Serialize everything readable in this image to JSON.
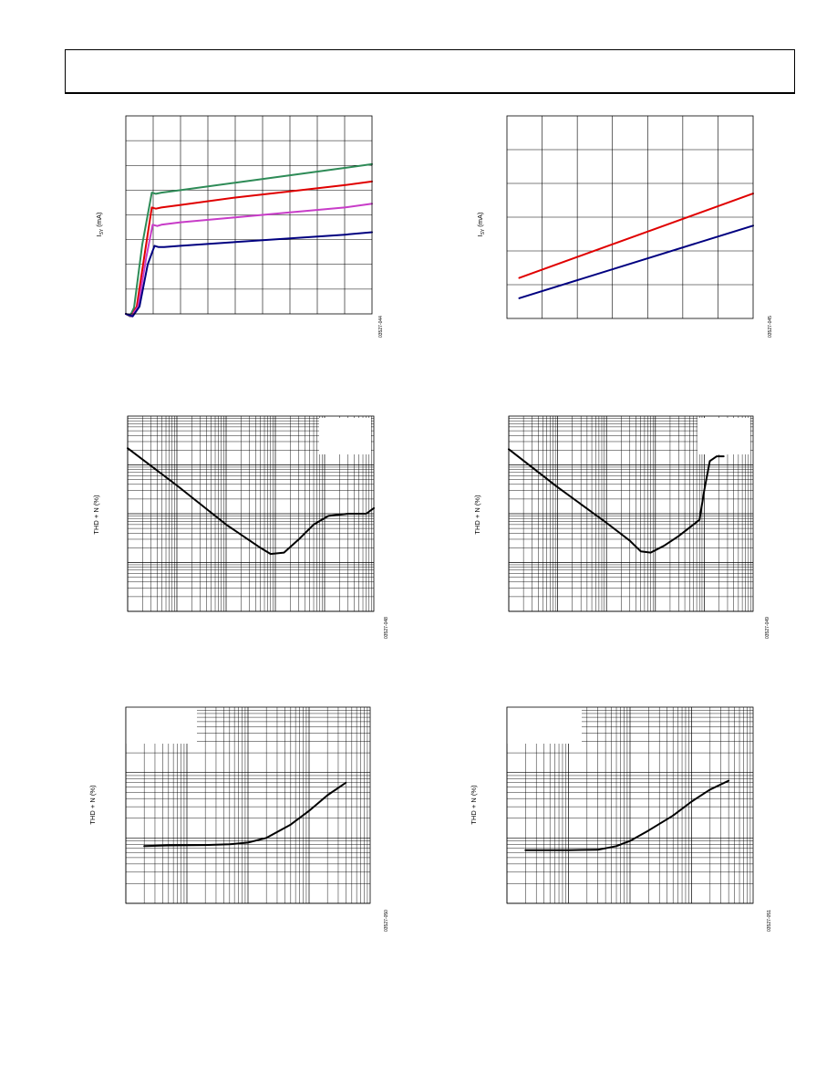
{
  "page": {
    "figure_ids": [
      "03527-044",
      "03527-045",
      "03527-048",
      "03527-049",
      "03527-050",
      "03527-051"
    ]
  },
  "chart_data": [
    {
      "id": "isy-vs-vsy",
      "type": "line",
      "ylabel_main": "I",
      "ylabel_sub": "SY",
      "ylabel_unit": "(mA)",
      "figure_id": "03527-044",
      "log_x": false,
      "log_y": false,
      "xlim": [
        0,
        9
      ],
      "ylim": [
        0,
        8
      ],
      "x_divisions": 9,
      "y_divisions": 8,
      "grid": true,
      "series": [
        {
          "color": "#2e8b57",
          "points": [
            [
              0,
              0
            ],
            [
              0.15,
              -0.1
            ],
            [
              0.3,
              0.25
            ],
            [
              0.6,
              2.8
            ],
            [
              0.95,
              4.9
            ],
            [
              1.1,
              4.85
            ],
            [
              1.3,
              4.9
            ],
            [
              2,
              5
            ],
            [
              4,
              5.3
            ],
            [
              6,
              5.6
            ],
            [
              8,
              5.9
            ],
            [
              9,
              6.05
            ]
          ]
        },
        {
          "color": "#e00000",
          "points": [
            [
              0,
              0
            ],
            [
              0.2,
              -0.1
            ],
            [
              0.4,
              0.3
            ],
            [
              0.7,
              2.5
            ],
            [
              0.95,
              4.3
            ],
            [
              1.1,
              4.25
            ],
            [
              1.3,
              4.3
            ],
            [
              2,
              4.4
            ],
            [
              4,
              4.7
            ],
            [
              6,
              4.95
            ],
            [
              8,
              5.2
            ],
            [
              9,
              5.35
            ]
          ]
        },
        {
          "color": "#c83cc8",
          "points": [
            [
              0,
              0
            ],
            [
              0.2,
              -0.1
            ],
            [
              0.45,
              0.3
            ],
            [
              0.75,
              2.3
            ],
            [
              0.98,
              3.6
            ],
            [
              1.15,
              3.55
            ],
            [
              1.3,
              3.6
            ],
            [
              2,
              3.7
            ],
            [
              4,
              3.9
            ],
            [
              6,
              4.1
            ],
            [
              8,
              4.3
            ],
            [
              9,
              4.45
            ]
          ]
        },
        {
          "color": "#000080",
          "points": [
            [
              0,
              0
            ],
            [
              0.25,
              -0.1
            ],
            [
              0.5,
              0.3
            ],
            [
              0.8,
              2.0
            ],
            [
              1.05,
              2.75
            ],
            [
              1.2,
              2.7
            ],
            [
              1.4,
              2.7
            ],
            [
              2,
              2.75
            ],
            [
              4,
              2.9
            ],
            [
              6,
              3.05
            ],
            [
              8,
              3.2
            ],
            [
              9,
              3.3
            ]
          ]
        }
      ]
    },
    {
      "id": "isy-vs-temperature",
      "type": "line",
      "ylabel_main": "I",
      "ylabel_sub": "SY",
      "ylabel_unit": "(mA)",
      "figure_id": "03527-045",
      "log_x": false,
      "log_y": false,
      "xlim": [
        0,
        7
      ],
      "ylim": [
        0,
        6
      ],
      "x_divisions": 7,
      "y_divisions": 6,
      "grid": true,
      "series": [
        {
          "color": "#e00000",
          "points": [
            [
              0.35,
              1.2
            ],
            [
              7,
              3.7
            ]
          ]
        },
        {
          "color": "#000080",
          "points": [
            [
              0.35,
              0.6
            ],
            [
              7,
              2.75
            ]
          ]
        }
      ]
    },
    {
      "id": "thdn-vs-output-1",
      "type": "line",
      "ylabel": "THD + N (%)",
      "figure_id": "03527-048",
      "log_x": true,
      "log_y": true,
      "xlim": [
        0.0001,
        10
      ],
      "ylim": [
        0.001,
        10
      ],
      "legend_box": true,
      "grid": true,
      "series": [
        {
          "color": "#000000",
          "points": [
            [
              0.0001,
              2.2
            ],
            [
              0.001,
              0.38
            ],
            [
              0.01,
              0.06
            ],
            [
              0.05,
              0.02
            ],
            [
              0.08,
              0.015
            ],
            [
              0.15,
              0.016
            ],
            [
              0.3,
              0.03
            ],
            [
              0.6,
              0.06
            ],
            [
              1.2,
              0.09
            ],
            [
              3,
              0.1
            ],
            [
              7,
              0.1
            ],
            [
              10,
              0.13
            ]
          ]
        }
      ]
    },
    {
      "id": "thdn-vs-output-2",
      "type": "line",
      "ylabel": "THD + N (%)",
      "figure_id": "03527-049",
      "log_x": true,
      "log_y": true,
      "xlim": [
        0.0001,
        10
      ],
      "ylim": [
        0.001,
        10
      ],
      "legend_box": true,
      "grid": true,
      "series": [
        {
          "color": "#000000",
          "points": [
            [
              0.0001,
              2.1
            ],
            [
              0.001,
              0.35
            ],
            [
              0.01,
              0.065
            ],
            [
              0.03,
              0.028
            ],
            [
              0.05,
              0.017
            ],
            [
              0.08,
              0.016
            ],
            [
              0.15,
              0.022
            ],
            [
              0.3,
              0.035
            ],
            [
              0.6,
              0.06
            ],
            [
              0.8,
              0.075
            ],
            [
              1.0,
              0.3
            ],
            [
              1.3,
              1.2
            ],
            [
              1.8,
              1.5
            ],
            [
              2.5,
              1.5
            ]
          ]
        }
      ]
    },
    {
      "id": "thdn-vs-frequency-1",
      "type": "line",
      "ylabel": "THD + N (%)",
      "figure_id": "03527-050",
      "log_x": true,
      "log_y": true,
      "xlim": [
        10,
        100000
      ],
      "ylim": [
        0.001,
        1
      ],
      "legend_box": true,
      "grid": true,
      "series": [
        {
          "color": "#000000",
          "points": [
            [
              20,
              0.0075
            ],
            [
              50,
              0.0077
            ],
            [
              200,
              0.0078
            ],
            [
              500,
              0.008
            ],
            [
              1000,
              0.0085
            ],
            [
              2000,
              0.01
            ],
            [
              5000,
              0.016
            ],
            [
              10000,
              0.026
            ],
            [
              20000,
              0.045
            ],
            [
              40000,
              0.07
            ]
          ]
        }
      ]
    },
    {
      "id": "thdn-vs-frequency-2",
      "type": "line",
      "ylabel": "THD + N (%)",
      "figure_id": "03527-051",
      "log_x": true,
      "log_y": true,
      "xlim": [
        10,
        100000
      ],
      "ylim": [
        0.001,
        1
      ],
      "legend_box": true,
      "grid": true,
      "series": [
        {
          "color": "#000000",
          "points": [
            [
              20,
              0.0065
            ],
            [
              100,
              0.0065
            ],
            [
              300,
              0.0066
            ],
            [
              600,
              0.0075
            ],
            [
              1000,
              0.009
            ],
            [
              2000,
              0.013
            ],
            [
              5000,
              0.022
            ],
            [
              10000,
              0.036
            ],
            [
              20000,
              0.055
            ],
            [
              40000,
              0.075
            ]
          ]
        }
      ]
    }
  ]
}
